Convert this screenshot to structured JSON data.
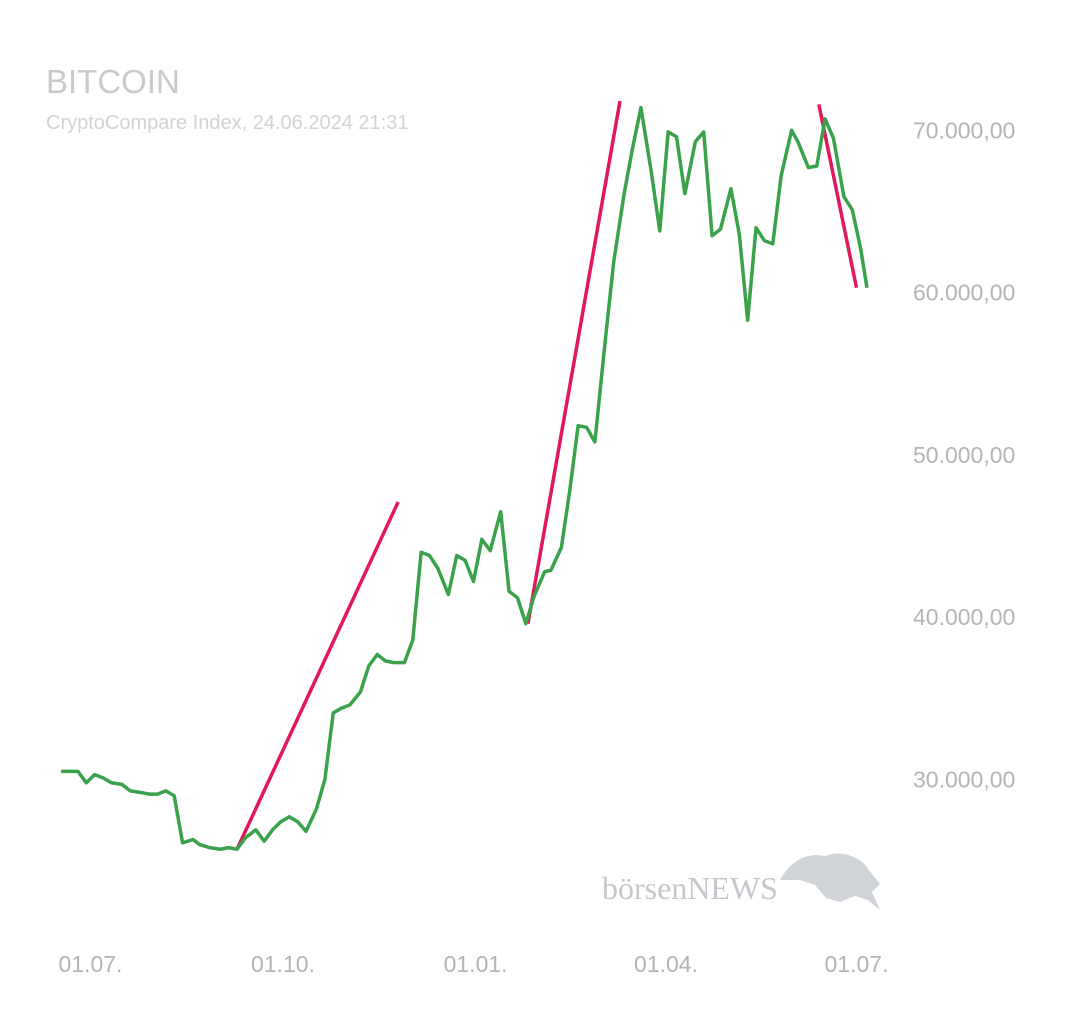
{
  "chart_data": {
    "type": "line",
    "title": "BITCOIN",
    "subtitle": "CryptoCompare Index, 24.06.2024 21:31",
    "watermark": "börsenNEWS",
    "x": [
      -14,
      -6,
      -2,
      2,
      6,
      10,
      15,
      19,
      24,
      28,
      32,
      36,
      40,
      44,
      49,
      52,
      57,
      62,
      66,
      70,
      74,
      79,
      83,
      87,
      91,
      95,
      99,
      103,
      108,
      112,
      116,
      120,
      124,
      129,
      133,
      137,
      141,
      145,
      150,
      154,
      158,
      162,
      166,
      171,
      175,
      179,
      183,
      187,
      191,
      196,
      200,
      204,
      208,
      212,
      217,
      220,
      225,
      229,
      233,
      237,
      241,
      246,
      250,
      255,
      259,
      263,
      268,
      272,
      276,
      280,
      284,
      289,
      293,
      297,
      301,
      306,
      310,
      314,
      318,
      322,
      326,
      330,
      335,
      338,
      343,
      347,
      351,
      355,
      360,
      364,
      368,
      371
    ],
    "series": [
      {
        "color": "#3aa24a",
        "values": [
          30500,
          30500,
          29800,
          30300,
          30100,
          29800,
          29700,
          29300,
          29200,
          29100,
          29100,
          29300,
          29000,
          26100,
          26300,
          26000,
          25800,
          25700,
          25800,
          25700,
          26400,
          26900,
          26200,
          26900,
          27400,
          27700,
          27400,
          26800,
          28200,
          30000,
          34100,
          34400,
          34600,
          35400,
          37000,
          37700,
          37300,
          37200,
          37200,
          38600,
          44000,
          43800,
          43000,
          41400,
          43800,
          43500,
          42200,
          44800,
          44100,
          46500,
          41600,
          41200,
          39600,
          41300,
          42800,
          42900,
          44300,
          47800,
          51800,
          51700,
          50800,
          57100,
          61900,
          66100,
          68900,
          71400,
          67400,
          63800,
          69900,
          69600,
          66100,
          69300,
          69900,
          63500,
          63900,
          66400,
          63600,
          58300,
          64000,
          63200,
          63000,
          67200,
          70000,
          69300,
          67700,
          67800,
          70700,
          69500,
          65900,
          65100,
          62700,
          60300
        ]
      }
    ],
    "trend_lines": [
      {
        "color": "#e2185b",
        "x": [
          70,
          147
        ],
        "values": [
          25700,
          47100
        ]
      },
      {
        "color": "#e2185b",
        "x": [
          209,
          253
        ],
        "values": [
          39600,
          71800
        ]
      },
      {
        "color": "#e2185b",
        "x": [
          348,
          366
        ],
        "values": [
          71600,
          60300
        ]
      }
    ],
    "xlim": [
      -20,
      380
    ],
    "xticks": [
      {
        "value": 0,
        "label": "01.07."
      },
      {
        "value": 92,
        "label": "01.10."
      },
      {
        "value": 184,
        "label": "01.01."
      },
      {
        "value": 275,
        "label": "01.04."
      },
      {
        "value": 366,
        "label": "01.07."
      }
    ],
    "ylim": [
      22500,
      72200
    ],
    "yticks": [
      {
        "value": 30000,
        "label": "30.000,00"
      },
      {
        "value": 40000,
        "label": "40.000,00"
      },
      {
        "value": 50000,
        "label": "50.000,00"
      },
      {
        "value": 60000,
        "label": "60.000,00"
      },
      {
        "value": 70000,
        "label": "70.000,00"
      }
    ]
  }
}
